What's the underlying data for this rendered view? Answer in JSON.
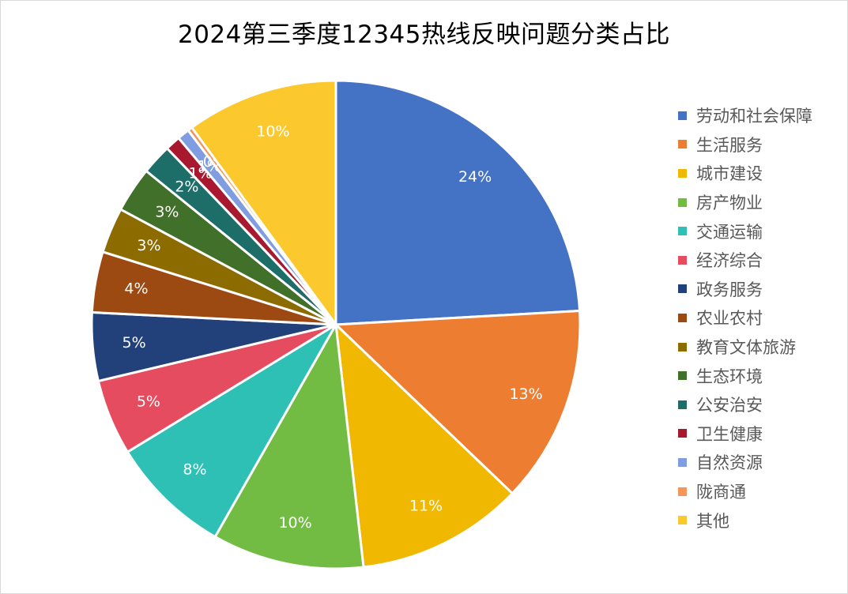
{
  "chart_data": {
    "type": "pie",
    "title": "2024第三季度12345热线反映问题分类占比",
    "label_color": "#ffffff",
    "slices": [
      {
        "label": "劳动和社会保障",
        "value": 24,
        "display": "24%",
        "color": "#4472c4"
      },
      {
        "label": "生活服务",
        "value": 13,
        "display": "13%",
        "color": "#ed7d31"
      },
      {
        "label": "城市建设",
        "value": 11,
        "display": "11%",
        "color": "#f0b800"
      },
      {
        "label": "房产物业",
        "value": 10,
        "display": "10%",
        "color": "#72bc44"
      },
      {
        "label": "交通运输",
        "value": 8,
        "display": "8%",
        "color": "#2ec0b4"
      },
      {
        "label": "经济综合",
        "value": 5,
        "display": "5%",
        "color": "#e64c60"
      },
      {
        "label": "政务服务",
        "value": 4.5,
        "display": "5%",
        "color": "#22407a"
      },
      {
        "label": "农业农村",
        "value": 4,
        "display": "4%",
        "color": "#9c4a12"
      },
      {
        "label": "教育文体旅游",
        "value": 3,
        "display": "3%",
        "color": "#8c6b00"
      },
      {
        "label": "生态环境",
        "value": 3,
        "display": "3%",
        "color": "#41702a"
      },
      {
        "label": "公安治安",
        "value": 2,
        "display": "2%",
        "color": "#1d6e68"
      },
      {
        "label": "卫生健康",
        "value": 1,
        "display": "1%",
        "color": "#a81930"
      },
      {
        "label": "自然资源",
        "value": 0.8,
        "display": "1%",
        "color": "#7f9de0"
      },
      {
        "label": "陇商通",
        "value": 0.3,
        "display": "0%",
        "color": "#f4965a"
      },
      {
        "label": "其他",
        "value": 10,
        "display": "10%",
        "color": "#fbc92d"
      }
    ]
  }
}
